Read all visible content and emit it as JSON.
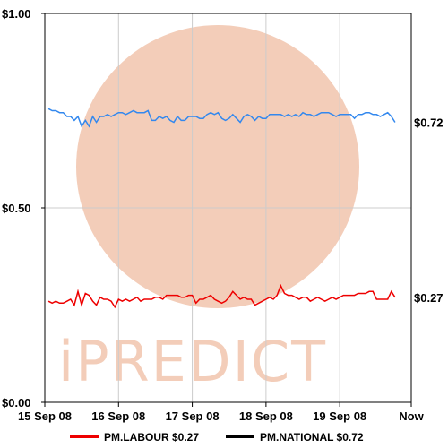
{
  "chart_data": {
    "type": "line",
    "watermark_text": "iPREDICT",
    "y_ticks": [
      {
        "value": 1.0,
        "label": "$1.00"
      },
      {
        "value": 0.5,
        "label": "$0.50"
      },
      {
        "value": 0.0,
        "label": "$0.00"
      }
    ],
    "x_ticks": [
      {
        "value": 0,
        "label": "15 Sep 08"
      },
      {
        "value": 1,
        "label": "16 Sep 08"
      },
      {
        "value": 2,
        "label": "17 Sep 08"
      },
      {
        "value": 3,
        "label": "18 Sep 08"
      },
      {
        "value": 4,
        "label": "19 Sep 08"
      },
      {
        "value": 4.97,
        "label": "Now"
      }
    ],
    "xlim": [
      0,
      4.97
    ],
    "ylim": [
      0,
      1.0
    ],
    "grid": true,
    "legend_placement": "bottom",
    "series": [
      {
        "name": "PM.LABOUR $0.27",
        "color": "#ee0000",
        "end_label": "$0.27",
        "x": [
          0.05,
          0.1,
          0.15,
          0.2,
          0.25,
          0.3,
          0.35,
          0.4,
          0.45,
          0.5,
          0.55,
          0.6,
          0.65,
          0.7,
          0.75,
          0.8,
          0.85,
          0.9,
          0.95,
          1.0,
          1.05,
          1.1,
          1.15,
          1.2,
          1.25,
          1.3,
          1.35,
          1.4,
          1.45,
          1.5,
          1.55,
          1.6,
          1.65,
          1.7,
          1.75,
          1.8,
          1.85,
          1.9,
          1.95,
          2.0,
          2.05,
          2.1,
          2.15,
          2.2,
          2.25,
          2.3,
          2.35,
          2.4,
          2.45,
          2.5,
          2.55,
          2.6,
          2.65,
          2.7,
          2.75,
          2.8,
          2.85,
          2.9,
          2.95,
          3.0,
          3.05,
          3.1,
          3.15,
          3.2,
          3.25,
          3.3,
          3.35,
          3.4,
          3.45,
          3.5,
          3.55,
          3.6,
          3.65,
          3.7,
          3.75,
          3.8,
          3.85,
          3.9,
          3.95,
          4.0,
          4.05,
          4.1,
          4.15,
          4.2,
          4.25,
          4.3,
          4.35,
          4.4,
          4.45,
          4.5,
          4.55,
          4.6,
          4.65,
          4.7,
          4.75
        ],
        "values": [
          0.26,
          0.255,
          0.26,
          0.255,
          0.255,
          0.26,
          0.265,
          0.25,
          0.285,
          0.25,
          0.28,
          0.275,
          0.26,
          0.25,
          0.27,
          0.265,
          0.265,
          0.26,
          0.245,
          0.265,
          0.26,
          0.265,
          0.26,
          0.265,
          0.27,
          0.26,
          0.265,
          0.265,
          0.265,
          0.27,
          0.27,
          0.265,
          0.275,
          0.275,
          0.275,
          0.275,
          0.27,
          0.27,
          0.275,
          0.275,
          0.255,
          0.265,
          0.265,
          0.27,
          0.275,
          0.265,
          0.26,
          0.255,
          0.26,
          0.27,
          0.285,
          0.275,
          0.265,
          0.27,
          0.265,
          0.265,
          0.25,
          0.255,
          0.26,
          0.265,
          0.27,
          0.265,
          0.275,
          0.3,
          0.28,
          0.275,
          0.275,
          0.27,
          0.265,
          0.27,
          0.27,
          0.26,
          0.265,
          0.27,
          0.265,
          0.26,
          0.265,
          0.27,
          0.265,
          0.27,
          0.275,
          0.275,
          0.275,
          0.275,
          0.28,
          0.28,
          0.28,
          0.285,
          0.285,
          0.265,
          0.265,
          0.265,
          0.265,
          0.285,
          0.27
        ]
      },
      {
        "name": "PM.NATIONAL $0.72",
        "color": "#000000",
        "line_color": "#3388ee",
        "end_label": "$0.72",
        "x": [
          0.05,
          0.1,
          0.15,
          0.2,
          0.25,
          0.3,
          0.35,
          0.4,
          0.45,
          0.5,
          0.55,
          0.6,
          0.65,
          0.7,
          0.75,
          0.8,
          0.85,
          0.9,
          0.95,
          1.0,
          1.05,
          1.1,
          1.15,
          1.2,
          1.25,
          1.3,
          1.35,
          1.4,
          1.45,
          1.5,
          1.55,
          1.6,
          1.65,
          1.7,
          1.75,
          1.8,
          1.85,
          1.9,
          1.95,
          2.0,
          2.05,
          2.1,
          2.15,
          2.2,
          2.25,
          2.3,
          2.35,
          2.4,
          2.45,
          2.5,
          2.55,
          2.6,
          2.65,
          2.7,
          2.75,
          2.8,
          2.85,
          2.9,
          2.95,
          3.0,
          3.05,
          3.1,
          3.15,
          3.2,
          3.25,
          3.3,
          3.35,
          3.4,
          3.45,
          3.5,
          3.55,
          3.6,
          3.65,
          3.7,
          3.75,
          3.8,
          3.85,
          3.9,
          3.95,
          4.0,
          4.05,
          4.1,
          4.15,
          4.2,
          4.25,
          4.3,
          4.35,
          4.4,
          4.45,
          4.5,
          4.55,
          4.6,
          4.65,
          4.7,
          4.75
        ],
        "values": [
          0.755,
          0.75,
          0.75,
          0.745,
          0.745,
          0.735,
          0.735,
          0.725,
          0.735,
          0.71,
          0.725,
          0.71,
          0.735,
          0.72,
          0.735,
          0.735,
          0.74,
          0.735,
          0.74,
          0.745,
          0.745,
          0.74,
          0.745,
          0.75,
          0.745,
          0.745,
          0.745,
          0.75,
          0.725,
          0.725,
          0.735,
          0.73,
          0.735,
          0.725,
          0.72,
          0.735,
          0.725,
          0.725,
          0.735,
          0.735,
          0.735,
          0.73,
          0.73,
          0.74,
          0.745,
          0.74,
          0.745,
          0.73,
          0.725,
          0.73,
          0.74,
          0.73,
          0.72,
          0.735,
          0.74,
          0.735,
          0.725,
          0.735,
          0.73,
          0.73,
          0.74,
          0.74,
          0.74,
          0.74,
          0.735,
          0.74,
          0.735,
          0.74,
          0.735,
          0.745,
          0.74,
          0.74,
          0.735,
          0.74,
          0.745,
          0.745,
          0.745,
          0.74,
          0.735,
          0.74,
          0.74,
          0.74,
          0.74,
          0.73,
          0.74,
          0.74,
          0.745,
          0.745,
          0.74,
          0.74,
          0.735,
          0.74,
          0.745,
          0.735,
          0.72
        ]
      }
    ]
  }
}
